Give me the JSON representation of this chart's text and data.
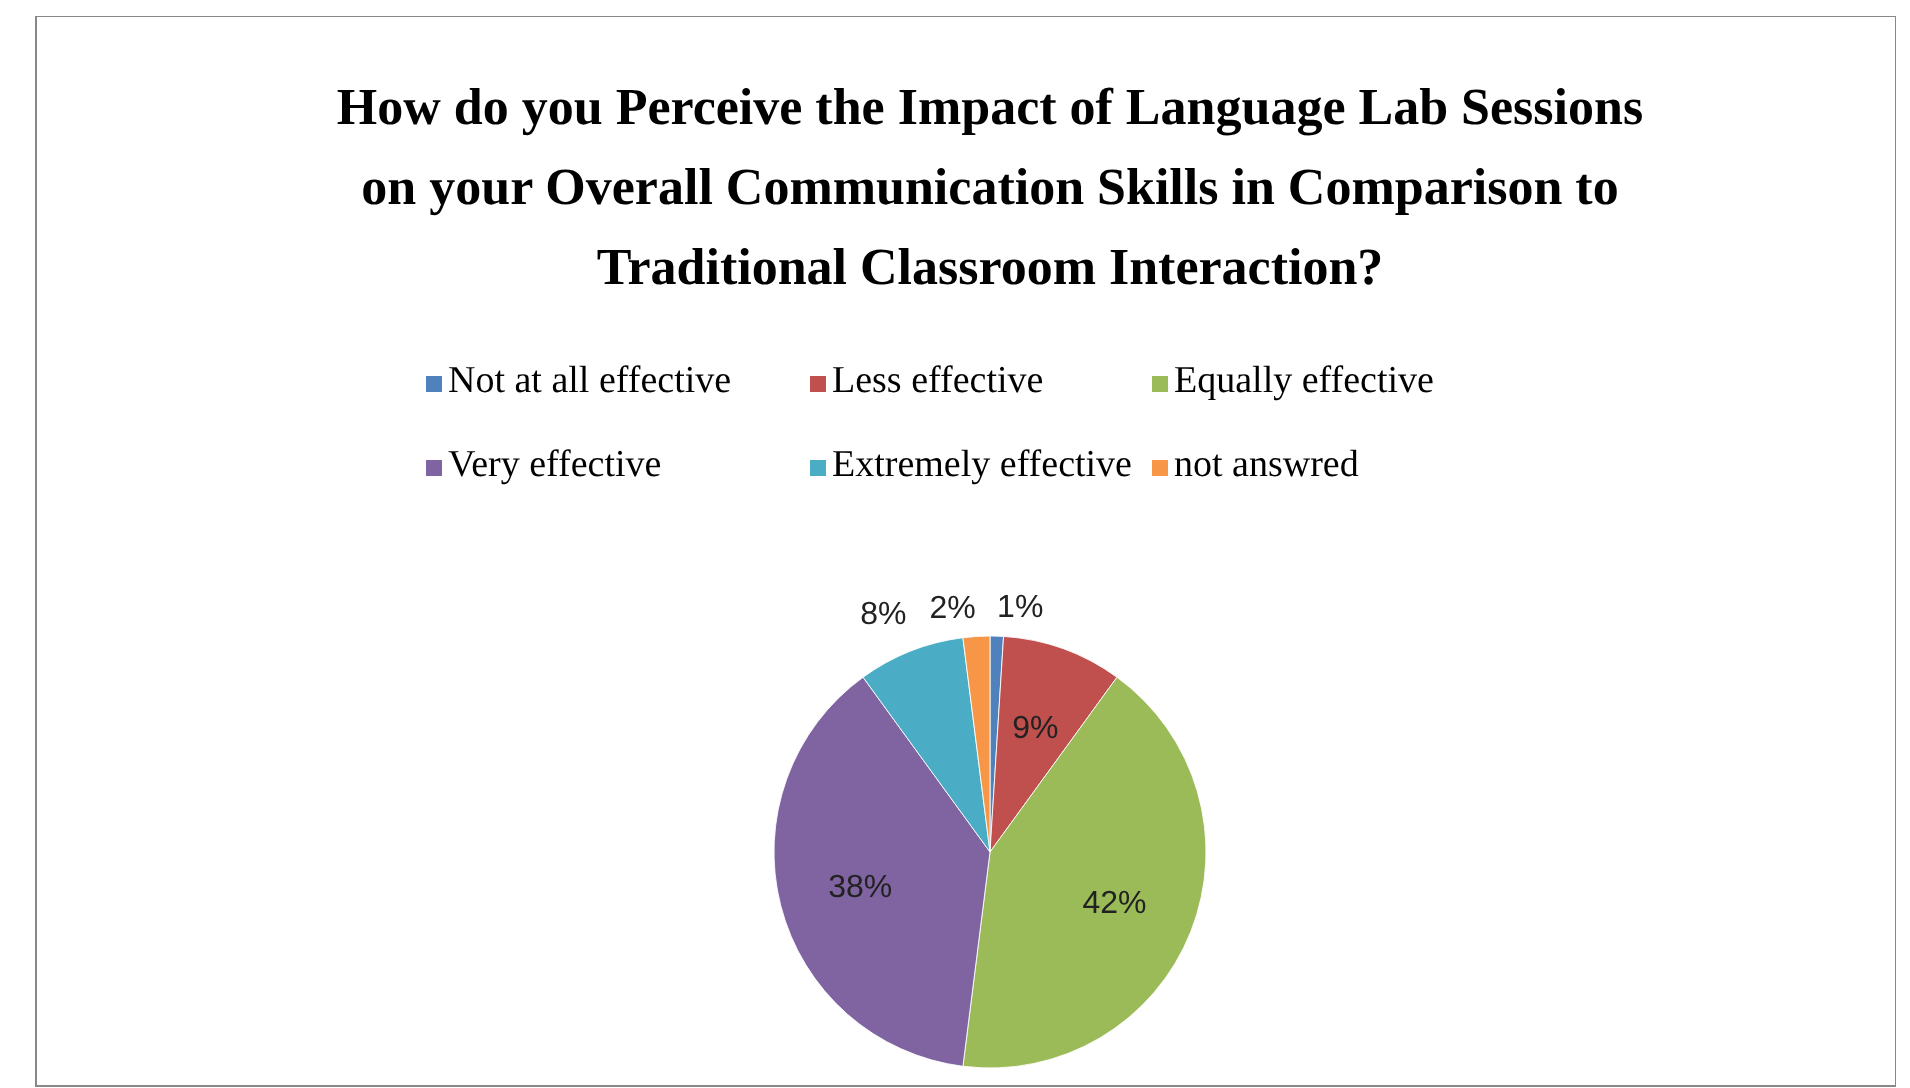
{
  "chart_data": {
    "type": "pie",
    "title": "How  do you Perceive the Impact of Language Lab Sessions\non your Overall Communication Skills in Comparison to\nTraditional Classroom Interaction?",
    "categories": [
      "Not at all effective",
      "Less effective",
      "Equally effective",
      "Very effective",
      "Extremely effective",
      "not answred"
    ],
    "values": [
      1,
      9,
      42,
      38,
      8,
      2
    ],
    "value_labels": [
      "1%",
      "9%",
      "42%",
      "38%",
      "8%",
      "2%"
    ],
    "colors": [
      "#4f81bd",
      "#c0504d",
      "#9bbb59",
      "#8064a2",
      "#4bacc6",
      "#f79646"
    ],
    "legend": "top"
  }
}
